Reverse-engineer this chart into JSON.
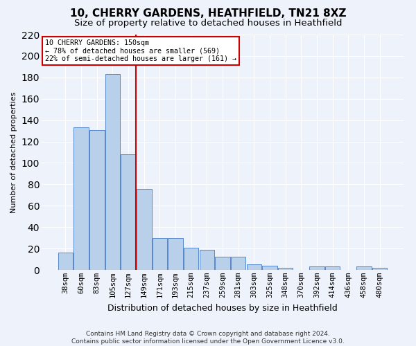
{
  "title": "10, CHERRY GARDENS, HEATHFIELD, TN21 8XZ",
  "subtitle": "Size of property relative to detached houses in Heathfield",
  "xlabel": "Distribution of detached houses by size in Heathfield",
  "ylabel": "Number of detached properties",
  "categories": [
    "38sqm",
    "60sqm",
    "83sqm",
    "105sqm",
    "127sqm",
    "149sqm",
    "171sqm",
    "193sqm",
    "215sqm",
    "237sqm",
    "259sqm",
    "281sqm",
    "303sqm",
    "325sqm",
    "348sqm",
    "370sqm",
    "392sqm",
    "414sqm",
    "436sqm",
    "458sqm",
    "480sqm"
  ],
  "values": [
    16,
    133,
    131,
    183,
    108,
    76,
    30,
    30,
    21,
    19,
    12,
    12,
    5,
    4,
    2,
    0,
    3,
    3,
    0,
    3,
    2
  ],
  "bar_color": "#b8d0ea",
  "bar_edge_color": "#5588cc",
  "ylim": [
    0,
    220
  ],
  "yticks": [
    0,
    20,
    40,
    60,
    80,
    100,
    120,
    140,
    160,
    180,
    200,
    220
  ],
  "vline_color": "#cc0000",
  "annotation_text": "10 CHERRY GARDENS: 150sqm\n← 78% of detached houses are smaller (569)\n22% of semi-detached houses are larger (161) →",
  "annotation_box_color": "#ffffff",
  "annotation_box_edge": "#cc0000",
  "footer": "Contains HM Land Registry data © Crown copyright and database right 2024.\nContains public sector information licensed under the Open Government Licence v3.0.",
  "bg_color": "#eef2fa",
  "grid_color": "#ffffff",
  "title_fontsize": 11,
  "subtitle_fontsize": 9.5,
  "xlabel_fontsize": 9,
  "ylabel_fontsize": 8,
  "tick_fontsize": 7.5,
  "footer_fontsize": 6.5
}
